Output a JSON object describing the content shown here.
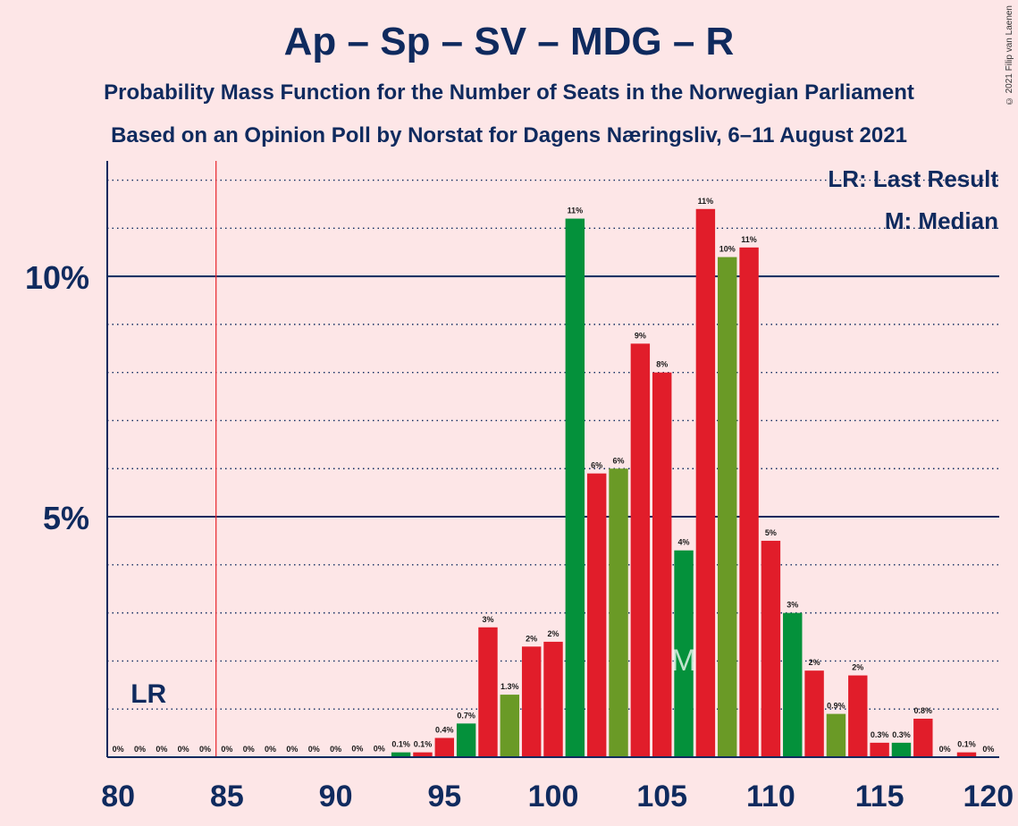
{
  "title": "Ap – Sp – SV – MDG – R",
  "subtitle": "Probability Mass Function for the Number of Seats in the Norwegian Parliament",
  "subtitle2": "Based on an Opinion Poll by Norstat for Dagens Næringsliv, 6–11 August 2021",
  "copyright": "© 2021 Filip van Laenen",
  "legend": {
    "last_result": "LR: Last Result",
    "median": "M: Median"
  },
  "colors": {
    "background": "#fde6e7",
    "red": "#e11d2a",
    "green": "#04913b",
    "olive": "#6a9a26",
    "axis": "#0f2a5e",
    "last_result_line": "#e8232b"
  },
  "chart_data": {
    "type": "bar",
    "x": [
      80,
      81,
      82,
      83,
      84,
      85,
      86,
      87,
      88,
      89,
      90,
      91,
      92,
      93,
      94,
      95,
      96,
      97,
      98,
      99,
      100,
      101,
      102,
      103,
      104,
      105,
      106,
      107,
      108,
      109,
      110,
      111,
      112,
      113,
      114,
      115,
      116,
      117,
      118,
      119,
      120
    ],
    "values": [
      0,
      0,
      0,
      0,
      0,
      0,
      0,
      0,
      0,
      0,
      0,
      0.01,
      0.01,
      0.1,
      0.1,
      0.4,
      0.7,
      2.7,
      1.3,
      2.3,
      2.4,
      11.2,
      5.9,
      6.0,
      8.6,
      8.0,
      4.3,
      11.4,
      10.4,
      10.6,
      4.5,
      3.0,
      1.8,
      0.9,
      1.7,
      0.3,
      0.3,
      0.8,
      0,
      0.1,
      0
    ],
    "value_labels": [
      "0%",
      "0%",
      "0%",
      "0%",
      "0%",
      "0%",
      "0%",
      "0%",
      "0%",
      "0%",
      "0%",
      "0%",
      "0%",
      "0.1%",
      "0.1%",
      "0.4%",
      "0.7%",
      "3%",
      "1.3%",
      "2%",
      "2%",
      "11%",
      "6%",
      "6%",
      "9%",
      "8%",
      "4%",
      "11%",
      "10%",
      "11%",
      "5%",
      "3%",
      "2%",
      "0.9%",
      "2%",
      "0.3%",
      "0.3%",
      "0.8%",
      "0%",
      "0.1%",
      "0%"
    ],
    "bar_colors": [
      "red",
      "red",
      "red",
      "red",
      "red",
      "red",
      "red",
      "red",
      "red",
      "red",
      "red",
      "red",
      "red",
      "green",
      "red",
      "red",
      "green",
      "red",
      "olive",
      "red",
      "red",
      "green",
      "red",
      "olive",
      "red",
      "red",
      "green",
      "red",
      "olive",
      "red",
      "red",
      "green",
      "red",
      "olive",
      "red",
      "red",
      "green",
      "red",
      "red",
      "red",
      "red"
    ],
    "x_ticks": [
      80,
      85,
      90,
      95,
      100,
      105,
      110,
      115,
      120
    ],
    "x_tick_labels": [
      "80",
      "85",
      "90",
      "95",
      "100",
      "105",
      "110",
      "115",
      "120"
    ],
    "y_ticks": [
      5,
      10
    ],
    "y_tick_labels": [
      "5%",
      "10%"
    ],
    "ylim": [
      0,
      12.4
    ],
    "xlim": [
      79.5,
      120.5
    ],
    "minor_grid_step": 1,
    "last_result": 85,
    "last_result_label": "LR",
    "median": 106,
    "median_label": "M"
  }
}
